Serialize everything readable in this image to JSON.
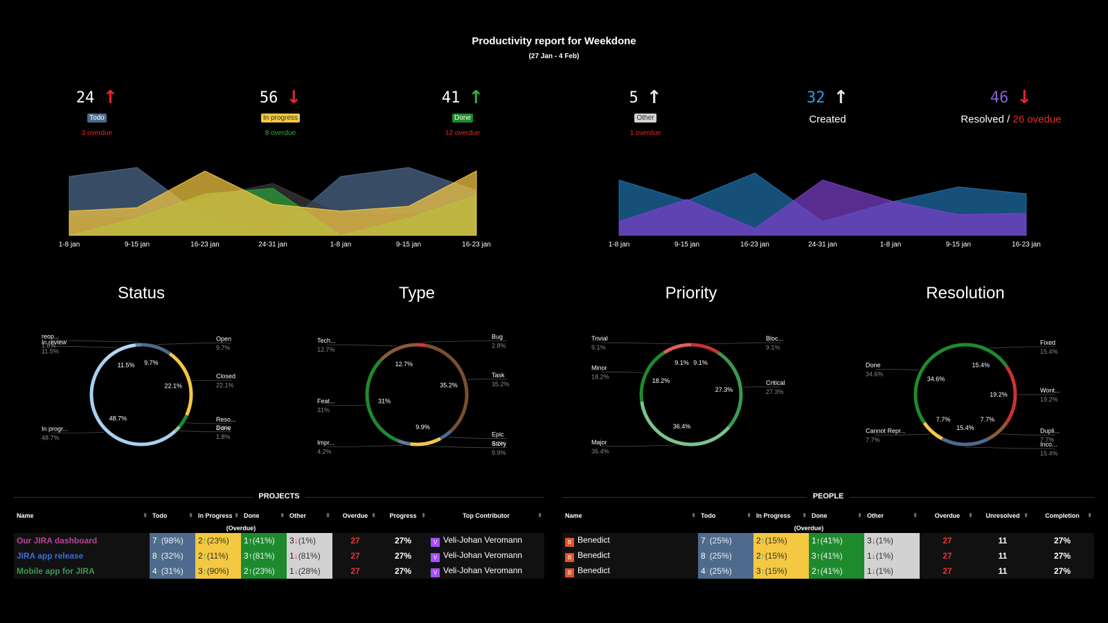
{
  "report": {
    "title": "Productivity report for Weekdone",
    "range": "(27 Jan - 4 Feb)"
  },
  "kpis": [
    {
      "value": "24",
      "arrow": "↑",
      "arrow_class": "up-red",
      "label": "Todo",
      "badge_bg": "#4e6a8c",
      "badge_fg": "#ffffff",
      "overdue": "3 overdue",
      "overdue_color": "#e8262a"
    },
    {
      "value": "56",
      "arrow": "↓",
      "arrow_class": "down-red",
      "label": "In progress",
      "badge_bg": "#f5c842",
      "badge_fg": "#333333",
      "overdue": "8 overdue",
      "overdue_color": "#2ab34a"
    },
    {
      "value": "41",
      "arrow": "↑",
      "arrow_class": "up-green",
      "label": "Done",
      "badge_bg": "#1e8a2e",
      "badge_fg": "#ffffff",
      "overdue": "12 overdue",
      "overdue_color": "#e8262a"
    },
    {
      "value": "5",
      "arrow": "↑",
      "arrow_class": "up-white",
      "label": "Other",
      "badge_bg": "#d2d2d2",
      "badge_fg": "#333333",
      "overdue": "1 overdue",
      "overdue_color": "#e8262a"
    }
  ],
  "created": {
    "value": "32",
    "arrow": "↑",
    "label": "Created",
    "color": "#2a9fe8"
  },
  "resolved": {
    "value": "46",
    "arrow": "↓",
    "label": "Resolved",
    "separator": " / ",
    "overdue": "26 ovedue",
    "color": "#8a5fd6"
  },
  "chart_data": [
    {
      "type": "area",
      "x": [
        "1-8 jan",
        "9-15 jan",
        "16-23 jan",
        "24-31 jan",
        "1-8 jan",
        "9-15 jan",
        "16-23 jan"
      ],
      "series": [
        {
          "key": "todo",
          "color": "#4e6a8c",
          "values": [
            85,
            98,
            25,
            0,
            85,
            98,
            65
          ]
        },
        {
          "key": "other",
          "color": "#3a3a3a",
          "values": [
            25,
            25,
            55,
            75,
            30,
            30,
            25
          ]
        },
        {
          "key": "done",
          "color": "#2e9e3a",
          "values": [
            0,
            25,
            60,
            68,
            0,
            25,
            58
          ]
        },
        {
          "key": "inprogress",
          "color": "#f5c842",
          "values": [
            35,
            40,
            93,
            45,
            35,
            42,
            93
          ]
        }
      ],
      "ylim": [
        0,
        110
      ]
    },
    {
      "type": "area",
      "x": [
        "1-8 jan",
        "9-15 jan",
        "16-23 jan",
        "24-31 jan",
        "1-8 jan",
        "9-15 jan",
        "16-23 jan"
      ],
      "series": [
        {
          "key": "created",
          "color": "#1e6fa8",
          "values": [
            80,
            50,
            90,
            20,
            48,
            70,
            60
          ]
        },
        {
          "key": "resolved",
          "color": "#7b3fc8",
          "values": [
            20,
            52,
            10,
            80,
            50,
            30,
            32
          ]
        }
      ],
      "ylim": [
        0,
        110
      ]
    },
    {
      "type": "pie",
      "title": "Status",
      "slices": [
        {
          "label": "Open",
          "value": 9.7,
          "display": "9.7%",
          "color": "#4e6a8c"
        },
        {
          "label": "Closed",
          "value": 22.1,
          "display": "22.1%",
          "color": "#f5c842"
        },
        {
          "label": "Reso...",
          "value": 4.4,
          "display": "4.4%",
          "color": "#1e8a2e"
        },
        {
          "label": "Done",
          "value": 1.8,
          "display": "1.8%",
          "color": "#8fc4a0"
        },
        {
          "label": "In progr...",
          "value": 48.7,
          "display": "48.7%",
          "color": "#a8d0ee"
        },
        {
          "label": "In review",
          "value": 11.5,
          "display": "11.5%",
          "color": "#b5d6f0"
        },
        {
          "label": "reop...",
          "value": 1.8,
          "display": "1.8%",
          "color": "#5b8cb0"
        }
      ]
    },
    {
      "type": "pie",
      "title": "Type",
      "slices": [
        {
          "label": "Bug",
          "value": 2.8,
          "display": "2.8%",
          "color": "#d43a3a"
        },
        {
          "label": "Task",
          "value": 35.2,
          "display": "35.2%",
          "color": "#7a4e2e"
        },
        {
          "label": "Epic",
          "value": 4.2,
          "display": "4.2%",
          "color": "#4e6a8c"
        },
        {
          "label": "Story",
          "value": 9.9,
          "display": "9.9%",
          "color": "#f5c842"
        },
        {
          "label": "Impr...",
          "value": 4.2,
          "display": "4.2%",
          "color": "#5b7a96"
        },
        {
          "label": "Feat...",
          "value": 31,
          "display": "31%",
          "color": "#1e8a2e"
        },
        {
          "label": "Tech...",
          "value": 12.7,
          "display": "12.7%",
          "color": "#8a5a3a"
        }
      ]
    },
    {
      "type": "pie",
      "title": "Priority",
      "slices": [
        {
          "label": "Bloc...",
          "value": 9.1,
          "display": "9.1%",
          "color": "#c83232"
        },
        {
          "label": "Critical",
          "value": 27.3,
          "display": "27.3%",
          "color": "#3a9a50"
        },
        {
          "label": "Major",
          "value": 36.4,
          "display": "36.4%",
          "color": "#7ac48a"
        },
        {
          "label": "Minor",
          "value": 18.2,
          "display": "18.2%",
          "color": "#1e8a2e"
        },
        {
          "label": "Trivial",
          "value": 9.1,
          "display": "9.1%",
          "color": "#e06060"
        }
      ]
    },
    {
      "type": "pie",
      "title": "Resolution",
      "slices": [
        {
          "label": "Fixed",
          "value": 15.4,
          "display": "15.4%",
          "color": "#1e8a2e"
        },
        {
          "label": "Wont...",
          "value": 19.2,
          "display": "19.2%",
          "color": "#c83232"
        },
        {
          "label": "Dupli...",
          "value": 7.7,
          "display": "7.7%",
          "color": "#8a5a3a"
        },
        {
          "label": "Inco...",
          "value": 15.4,
          "display": "15.4%",
          "color": "#4e6a8c"
        },
        {
          "label": "Cannot Repr...",
          "value": 7.7,
          "display": "7.7%",
          "color": "#f5c842"
        },
        {
          "label": "Done",
          "value": 34.6,
          "display": "34.6%",
          "color": "#1e8a2e"
        }
      ]
    }
  ],
  "projects": {
    "section": "PROJECTS",
    "headers": [
      "Name",
      "Todo",
      "In Progress",
      "Done",
      "Other",
      "Overdue",
      "Progress",
      "Top Contributor"
    ],
    "overdue_note": "(Overdue)",
    "rows": [
      {
        "name": "Our JIRA dashboard",
        "name_color": "#c040a0",
        "todo_n": "7",
        "todo_a": "↑",
        "todo_p": "(98%)",
        "prog_n": "2",
        "prog_a": "↑",
        "prog_p": "(23%)",
        "done_n": "1",
        "done_a": "↑",
        "done_p": "(41%)",
        "other_n": "3",
        "other_a": "↓",
        "other_p": "(1%)",
        "overdue": "27",
        "progress": "27%",
        "avatar": "V",
        "contributor": "Veli-Johan Veromann"
      },
      {
        "name": "JIRA app release",
        "name_color": "#3a6ed8",
        "todo_n": "8",
        "todo_a": "↑",
        "todo_p": "(32%)",
        "prog_n": "2",
        "prog_a": "↑",
        "prog_p": "(11%)",
        "done_n": "3",
        "done_a": "↑",
        "done_p": "(81%)",
        "other_n": "1",
        "other_a": "↓",
        "other_p": "(81%)",
        "overdue": "27",
        "progress": "27%",
        "avatar": "V",
        "contributor": "Veli-Johan Veromann"
      },
      {
        "name": "Mobile app for JIRA",
        "name_color": "#3a9a50",
        "todo_n": "4",
        "todo_a": "↑",
        "todo_p": "(31%)",
        "prog_n": "3",
        "prog_a": "↑",
        "prog_p": "(90%)",
        "done_n": "2",
        "done_a": "↑",
        "done_p": "(23%)",
        "other_n": "1",
        "other_a": "↓",
        "other_p": "(28%)",
        "overdue": "27",
        "progress": "27%",
        "avatar": "V",
        "contributor": "Veli-Johan Veromann"
      }
    ]
  },
  "people": {
    "section": "PEOPLE",
    "headers": [
      "Name",
      "Todo",
      "In Progress",
      "Done",
      "Other",
      "Overdue",
      "Unresolved",
      "Completion"
    ],
    "overdue_note": "(Overdue)",
    "rows": [
      {
        "avatar": "B",
        "name": "Benedict",
        "todo_n": "7",
        "todo_a": "↑",
        "todo_p": "(25%)",
        "prog_n": "2",
        "prog_a": "↑",
        "prog_p": "(15%)",
        "done_n": "1",
        "done_a": "↑",
        "done_p": "(41%)",
        "other_n": "3",
        "other_a": "↓",
        "other_p": "(1%)",
        "overdue": "27",
        "unresolved": "11",
        "completion": "27%"
      },
      {
        "avatar": "B",
        "name": "Benedict",
        "todo_n": "8",
        "todo_a": "↑",
        "todo_p": "(25%)",
        "prog_n": "2",
        "prog_a": "↑",
        "prog_p": "(15%)",
        "done_n": "3",
        "done_a": "↑",
        "done_p": "(41%)",
        "other_n": "1",
        "other_a": "↓",
        "other_p": "(1%)",
        "overdue": "27",
        "unresolved": "11",
        "completion": "27%"
      },
      {
        "avatar": "B",
        "name": "Benedict",
        "todo_n": "4",
        "todo_a": "↑",
        "todo_p": "(25%)",
        "prog_n": "3",
        "prog_a": "↑",
        "prog_p": "(15%)",
        "done_n": "2",
        "done_a": "↑",
        "done_p": "(41%)",
        "other_n": "1",
        "other_a": "↓",
        "other_p": "(1%)",
        "overdue": "27",
        "unresolved": "11",
        "completion": "27%"
      }
    ]
  }
}
